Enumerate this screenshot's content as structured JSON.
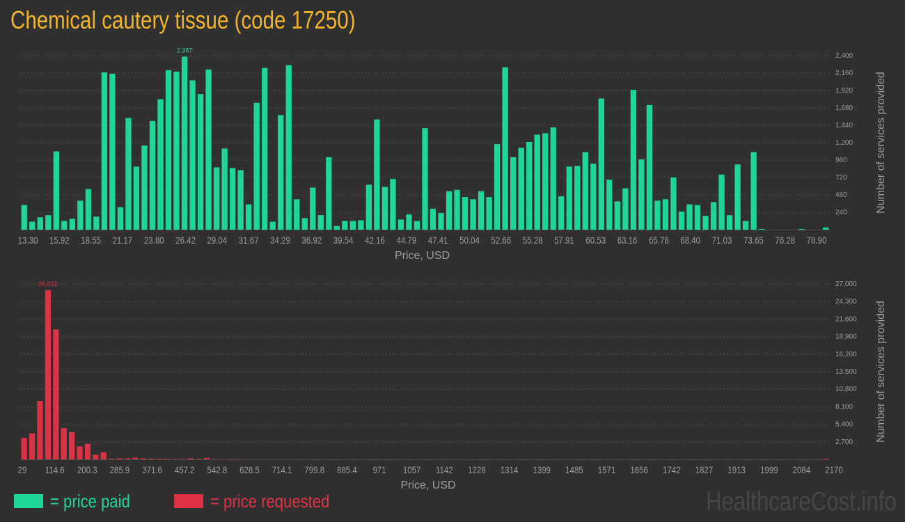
{
  "title": "Chemical cautery tissue (code 17250)",
  "colors": {
    "paid": "#1fd699",
    "requested": "#dc3246",
    "title": "#f0b428",
    "text": "#9a9a9a",
    "grid": "#4a4a4a",
    "background": "#303030"
  },
  "legend": {
    "paid_label": "= price paid",
    "requested_label": "= price requested"
  },
  "watermark": "HealthcareCost.info",
  "chart_data": [
    {
      "type": "bar",
      "title": "",
      "xlabel": "Price, USD",
      "ylabel": "Number of services provided",
      "ylim": [
        0,
        2400
      ],
      "yticks": [
        "240",
        "480",
        "720",
        "960",
        "1,200",
        "1,440",
        "1,680",
        "1,920",
        "2,160",
        "2,400"
      ],
      "ytick_values": [
        240,
        480,
        720,
        960,
        1200,
        1440,
        1680,
        1920,
        2160,
        2400
      ],
      "x_tick_labels": [
        "13.30",
        "15.92",
        "18.55",
        "21.17",
        "23.80",
        "26.42",
        "29.04",
        "31.67",
        "34.29",
        "36.92",
        "39.54",
        "42.16",
        "44.79",
        "47.41",
        "50.04",
        "52.66",
        "55.28",
        "57.91",
        "60.53",
        "63.16",
        "65.78",
        "68.40",
        "71.03",
        "73.65",
        "76.28",
        "78.90"
      ],
      "peak_label": "2,387",
      "grid": true,
      "values": [
        340,
        110,
        170,
        200,
        1080,
        120,
        150,
        400,
        560,
        180,
        2170,
        2150,
        310,
        1540,
        870,
        1160,
        1500,
        1800,
        2200,
        2180,
        2387,
        2060,
        1870,
        2210,
        860,
        1120,
        850,
        820,
        350,
        1750,
        2230,
        110,
        1580,
        2270,
        420,
        160,
        580,
        200,
        1000,
        50,
        120,
        120,
        130,
        620,
        1520,
        590,
        700,
        140,
        210,
        120,
        1400,
        290,
        230,
        530,
        550,
        450,
        420,
        530,
        450,
        1180,
        2240,
        1000,
        1130,
        1210,
        1310,
        1330,
        1410,
        460,
        870,
        880,
        1070,
        910,
        1810,
        690,
        390,
        570,
        1930,
        970,
        1720,
        400,
        420,
        720,
        250,
        350,
        340,
        190,
        380,
        760,
        200,
        900,
        120,
        1070,
        10,
        0,
        0,
        0,
        0,
        10,
        0,
        0,
        30
      ]
    },
    {
      "type": "bar",
      "title": "",
      "xlabel": "Price, USD",
      "ylabel": "Number of services provided",
      "ylim": [
        0,
        27000
      ],
      "yticks": [
        "2,700",
        "5,400",
        "8,100",
        "10,800",
        "13,500",
        "16,200",
        "18,900",
        "21,600",
        "24,300",
        "27,000"
      ],
      "ytick_values": [
        2700,
        5400,
        8100,
        10800,
        13500,
        16200,
        18900,
        21600,
        24300,
        27000
      ],
      "x_tick_labels": [
        "29",
        "114.6",
        "200.3",
        "285.9",
        "371.6",
        "457.2",
        "542.8",
        "628.5",
        "714.1",
        "799.8",
        "885.4",
        "971",
        "1057",
        "1142",
        "1228",
        "1314",
        "1399",
        "1485",
        "1571",
        "1656",
        "1742",
        "1827",
        "1913",
        "1999",
        "2084",
        "2170"
      ],
      "peak_label": "26,032",
      "grid": true,
      "values": [
        3300,
        4000,
        9000,
        26032,
        20000,
        4800,
        4200,
        2000,
        2400,
        700,
        1100,
        100,
        150,
        150,
        250,
        150,
        100,
        100,
        80,
        50,
        40,
        150,
        80,
        220,
        40,
        20,
        20,
        20,
        10,
        10,
        10,
        10,
        10,
        10,
        5,
        5,
        5,
        5,
        5,
        5,
        5,
        5,
        5,
        5,
        5,
        5,
        5,
        5,
        5,
        5,
        5,
        5,
        5,
        5,
        5,
        5,
        5,
        5,
        5,
        5,
        5,
        5,
        5,
        5,
        5,
        5,
        5,
        5,
        5,
        5,
        5,
        5,
        5,
        5,
        5,
        5,
        5,
        5,
        5,
        5,
        5,
        5,
        5,
        5,
        5,
        5,
        5,
        5,
        5,
        5,
        5,
        5,
        5,
        5,
        5,
        5,
        5,
        5,
        5,
        5,
        5,
        80
      ]
    }
  ]
}
